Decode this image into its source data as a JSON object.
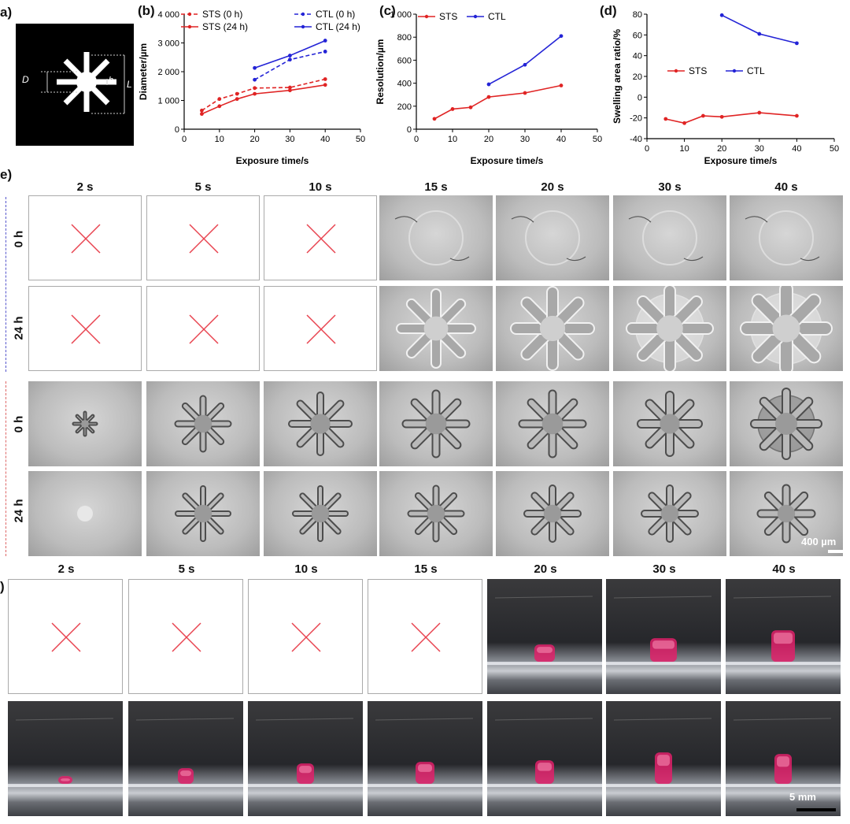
{
  "panel_labels": {
    "a": "a)",
    "b": "(b)",
    "c": "(c)",
    "d": "(d)",
    "e": "e)",
    "f": ")"
  },
  "schematic": {
    "d_label": "D",
    "h_label": "h",
    "l_label": "L"
  },
  "time_labels_e": [
    "2 s",
    "5 s",
    "10 s",
    "15 s",
    "20 s",
    "30 s",
    "40 s"
  ],
  "time_labels_f": [
    "2 s",
    "5 s",
    "10 s",
    "15 s",
    "20 s",
    "30 s",
    "40 s"
  ],
  "row_labels": {
    "ctl_0h": "0 h",
    "ctl_24h": "24 h",
    "sts_0h": "0 h",
    "sts_24h": "24 h"
  },
  "scale_e": "400 µm",
  "scale_f": "5 mm",
  "colors": {
    "sts": "#e02424",
    "ctl": "#2323d6",
    "cross": "#e8434f",
    "gel": "#e0206a"
  },
  "chart_data": [
    {
      "type": "line",
      "xlabel": "Exposure time/s",
      "ylabel": "Diameter/µm",
      "xlim": [
        0,
        50
      ],
      "ylim": [
        0,
        4000
      ],
      "xticks": [
        "0",
        "10",
        "20",
        "30",
        "40",
        "50"
      ],
      "yticks": [
        "0",
        "1 000",
        "2 000",
        "3 000",
        "4 000"
      ],
      "legend": "top-left",
      "series": [
        {
          "name": "STS (0 h)",
          "dashed": true,
          "color": "sts",
          "x": [
            5,
            10,
            15,
            20,
            30,
            40
          ],
          "y": [
            650,
            1050,
            1230,
            1430,
            1450,
            1740
          ]
        },
        {
          "name": "STS (24 h)",
          "dashed": false,
          "color": "sts",
          "x": [
            5,
            10,
            15,
            20,
            30,
            40
          ],
          "y": [
            530,
            800,
            1050,
            1230,
            1350,
            1540
          ]
        },
        {
          "name": "CTL (0 h)",
          "dashed": true,
          "color": "ctl",
          "x": [
            20,
            30,
            40
          ],
          "y": [
            1720,
            2420,
            2700
          ]
        },
        {
          "name": "CTL (24 h)",
          "dashed": false,
          "color": "ctl",
          "x": [
            20,
            30,
            40
          ],
          "y": [
            2130,
            2560,
            3080
          ]
        }
      ]
    },
    {
      "type": "line",
      "xlabel": "Exposure time/s",
      "ylabel": "Resolution/µm",
      "xlim": [
        0,
        50
      ],
      "ylim": [
        0,
        1000
      ],
      "xticks": [
        "0",
        "10",
        "20",
        "30",
        "40",
        "50"
      ],
      "yticks": [
        "0",
        "200",
        "400",
        "600",
        "800",
        "1 000"
      ],
      "legend": "top-left",
      "series": [
        {
          "name": "STS",
          "color": "sts",
          "x": [
            5,
            10,
            15,
            20,
            30,
            40
          ],
          "y": [
            90,
            175,
            190,
            280,
            315,
            380
          ]
        },
        {
          "name": "CTL",
          "color": "ctl",
          "x": [
            20,
            30,
            40
          ],
          "y": [
            390,
            560,
            810
          ]
        }
      ]
    },
    {
      "type": "line",
      "xlabel": "Exposure time/s",
      "ylabel": "Swelling area ratio/%",
      "xlim": [
        0,
        50
      ],
      "ylim": [
        -40,
        80
      ],
      "xticks": [
        "0",
        "10",
        "20",
        "30",
        "40",
        "50"
      ],
      "yticks": [
        "-40",
        "-20",
        "0",
        "20",
        "40",
        "60",
        "80"
      ],
      "legend": "middle-left",
      "series": [
        {
          "name": "STS",
          "color": "sts",
          "x": [
            5,
            10,
            15,
            20,
            30,
            40
          ],
          "y": [
            -21,
            -25,
            -18,
            -19,
            -15,
            -18
          ]
        },
        {
          "name": "CTL",
          "color": "ctl",
          "x": [
            20,
            30,
            40
          ],
          "y": [
            79,
            61,
            52
          ]
        }
      ]
    }
  ]
}
